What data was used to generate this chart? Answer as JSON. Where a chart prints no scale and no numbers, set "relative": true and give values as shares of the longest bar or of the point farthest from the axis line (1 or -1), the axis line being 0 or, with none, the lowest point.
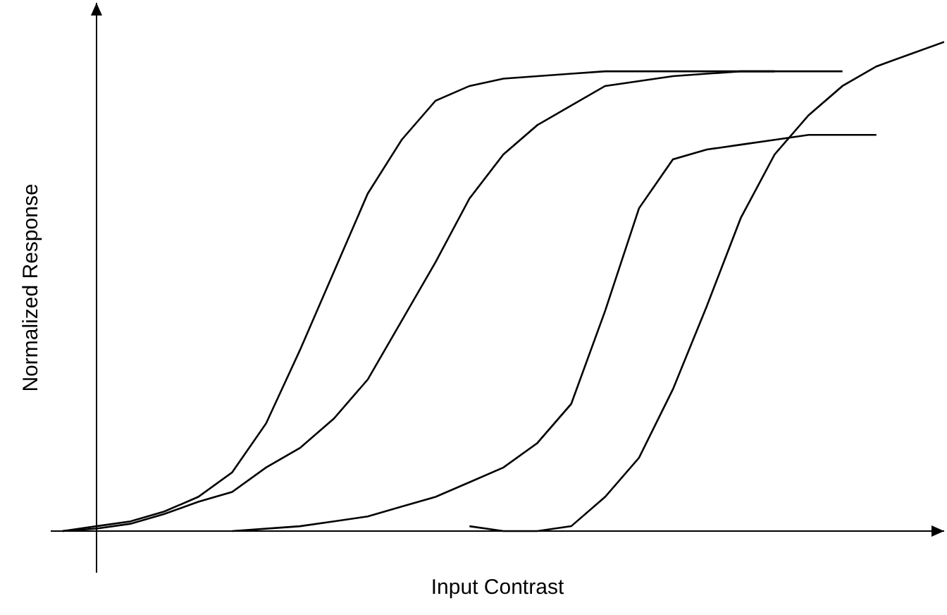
{
  "chart_data": {
    "type": "line",
    "relative": true,
    "xlabel": "Input Contrast",
    "ylabel": "Normalized Response",
    "marker": "none",
    "line_style": "solid",
    "categories": [
      null,
      null,
      null,
      null,
      null,
      null,
      null,
      null,
      null,
      null,
      null,
      null,
      null,
      null,
      null,
      null,
      null,
      null,
      null,
      null,
      null,
      null,
      null,
      null,
      null,
      null,
      null
    ],
    "series": [
      {
        "color": "#000000",
        "values": [
          0,
          0.01,
          0.02,
          0.04,
          0.07,
          0.12,
          0.22,
          0.37,
          0.53,
          0.69,
          0.8,
          0.88,
          0.91,
          0.925,
          0.93,
          0.935,
          0.94,
          0.94,
          0.94,
          0.94,
          0.94,
          0.94,
          null,
          null,
          null,
          null,
          null
        ]
      },
      {
        "color": "#000000",
        "values": [
          0,
          0.005,
          0.015,
          0.035,
          0.06,
          0.08,
          0.13,
          0.17,
          0.23,
          0.31,
          0.43,
          0.55,
          0.68,
          0.77,
          0.83,
          0.87,
          0.91,
          0.92,
          0.93,
          0.935,
          0.94,
          0.94,
          0.94,
          0.94,
          null,
          null,
          null
        ]
      },
      {
        "color": "#000000",
        "values": [
          null,
          null,
          null,
          null,
          null,
          0,
          0.005,
          0.01,
          0.02,
          0.03,
          0.05,
          0.07,
          0.1,
          0.13,
          0.18,
          0.26,
          0.45,
          0.66,
          0.76,
          0.78,
          0.79,
          0.8,
          0.81,
          0.81,
          0.81,
          null,
          null
        ]
      },
      {
        "color": "#000000",
        "values": [
          null,
          null,
          null,
          null,
          null,
          null,
          null,
          null,
          null,
          null,
          null,
          null,
          0.01,
          0,
          0,
          0.01,
          0.07,
          0.15,
          0.29,
          0.46,
          0.64,
          0.77,
          0.85,
          0.91,
          0.95,
          0.975,
          1.0
        ]
      }
    ]
  }
}
